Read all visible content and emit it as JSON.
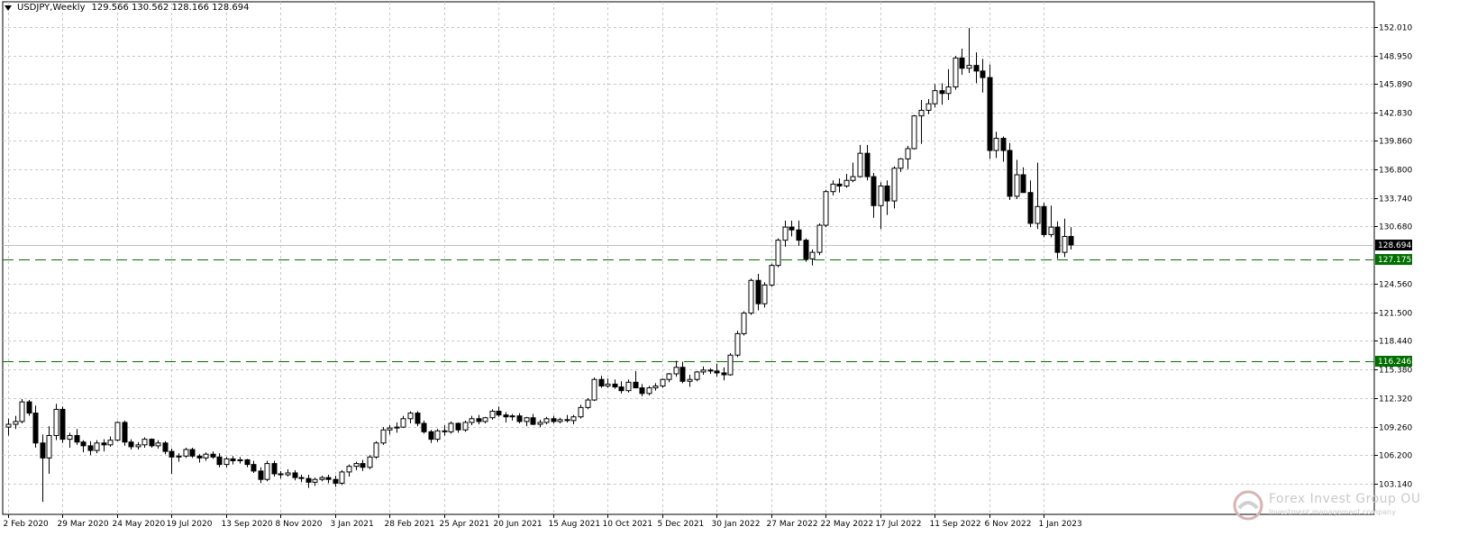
{
  "header": {
    "symbol": "USDJPY,Weekly",
    "ohlc": "129.566 130.562 128.166 128.694"
  },
  "watermark": {
    "name": "Forex Invest Group OU",
    "tagline": "Investment management company"
  },
  "chart_data": {
    "type": "candlestick",
    "title": "USDJPY,Weekly",
    "ylim": [
      103.0,
      153.5
    ],
    "y_ticks": [
      "152.010",
      "148.950",
      "145.890",
      "142.830",
      "139.860",
      "136.800",
      "133.740",
      "130.680",
      "124.560",
      "121.500",
      "118.440",
      "115.380",
      "112.320",
      "109.260",
      "106.200",
      "103.140"
    ],
    "x_ticks": [
      "2 Feb 2020",
      "29 Mar 2020",
      "24 May 2020",
      "19 Jul 2020",
      "13 Sep 2020",
      "8 Nov 2020",
      "3 Jan 2021",
      "28 Feb 2021",
      "25 Apr 2021",
      "20 Jun 2021",
      "15 Aug 2021",
      "10 Oct 2021",
      "5 Dec 2021",
      "30 Jan 2022",
      "27 Mar 2022",
      "22 May 2022",
      "17 Jul 2022",
      "11 Sep 2022",
      "6 Nov 2022",
      "1 Jan 2023"
    ],
    "current_price": "128.694",
    "levels": [
      {
        "value": 127.175,
        "label": "127.175",
        "color": "#007000",
        "style": "dashed"
      },
      {
        "value": 116.246,
        "label": "116.246",
        "color": "#007000",
        "style": "dashed"
      }
    ],
    "grid": true,
    "colors": {
      "bull_fill": "#ffffff",
      "bear_fill": "#000000",
      "outline": "#000000",
      "grid": "#c8c8c8",
      "current_line": "#c0c0c0"
    },
    "candles": [
      [
        109.2,
        110.1,
        108.3,
        109.5
      ],
      [
        109.5,
        110.4,
        109.0,
        109.8
      ],
      [
        109.8,
        112.2,
        109.6,
        111.9
      ],
      [
        111.9,
        112.1,
        110.4,
        110.7
      ],
      [
        110.7,
        111.5,
        107.0,
        107.5
      ],
      [
        107.5,
        108.4,
        101.2,
        105.9
      ],
      [
        105.9,
        109.3,
        104.2,
        108.3
      ],
      [
        108.3,
        111.7,
        107.8,
        111.1
      ],
      [
        111.1,
        111.4,
        107.5,
        107.9
      ],
      [
        107.9,
        108.6,
        107.0,
        108.3
      ],
      [
        108.3,
        109.0,
        107.3,
        107.6
      ],
      [
        107.6,
        107.8,
        106.5,
        107.2
      ],
      [
        107.2,
        107.7,
        106.2,
        106.7
      ],
      [
        106.7,
        107.8,
        106.4,
        107.5
      ],
      [
        107.5,
        107.9,
        106.6,
        107.3
      ],
      [
        107.3,
        108.2,
        107.1,
        107.8
      ],
      [
        107.8,
        109.8,
        107.7,
        109.7
      ],
      [
        109.7,
        109.9,
        107.2,
        107.6
      ],
      [
        107.6,
        107.9,
        106.8,
        107.1
      ],
      [
        107.1,
        107.6,
        106.8,
        107.3
      ],
      [
        107.3,
        108.1,
        107.0,
        107.9
      ],
      [
        107.9,
        108.0,
        107.0,
        107.2
      ],
      [
        107.2,
        107.8,
        106.9,
        107.5
      ],
      [
        107.5,
        107.7,
        106.3,
        106.6
      ],
      [
        106.6,
        106.9,
        104.2,
        106.0
      ],
      [
        106.0,
        106.4,
        105.5,
        106.1
      ],
      [
        106.1,
        107.0,
        105.9,
        106.8
      ],
      [
        106.8,
        107.0,
        105.9,
        106.1
      ],
      [
        106.1,
        106.3,
        105.4,
        105.9
      ],
      [
        105.9,
        106.5,
        105.6,
        106.3
      ],
      [
        106.3,
        106.6,
        105.8,
        106.0
      ],
      [
        106.0,
        106.4,
        104.9,
        105.2
      ],
      [
        105.2,
        106.0,
        104.9,
        105.8
      ],
      [
        105.8,
        106.1,
        105.2,
        105.6
      ],
      [
        105.6,
        106.0,
        105.3,
        105.7
      ],
      [
        105.7,
        105.8,
        104.9,
        105.2
      ],
      [
        105.2,
        105.6,
        104.3,
        104.5
      ],
      [
        104.5,
        104.9,
        103.2,
        103.6
      ],
      [
        103.6,
        105.6,
        103.4,
        105.3
      ],
      [
        105.3,
        105.6,
        103.9,
        104.2
      ],
      [
        104.2,
        104.5,
        103.7,
        104.1
      ],
      [
        104.1,
        104.7,
        103.9,
        104.3
      ],
      [
        104.3,
        104.6,
        103.5,
        103.8
      ],
      [
        103.8,
        104.1,
        103.3,
        103.7
      ],
      [
        103.7,
        104.1,
        102.7,
        103.3
      ],
      [
        103.3,
        103.8,
        102.9,
        103.6
      ],
      [
        103.6,
        104.0,
        103.4,
        103.8
      ],
      [
        103.8,
        104.1,
        103.2,
        103.6
      ],
      [
        103.6,
        104.0,
        102.8,
        103.2
      ],
      [
        103.2,
        104.6,
        103.0,
        104.4
      ],
      [
        104.4,
        105.2,
        103.9,
        105.0
      ],
      [
        105.0,
        105.5,
        104.6,
        105.3
      ],
      [
        105.3,
        105.7,
        104.5,
        104.9
      ],
      [
        104.9,
        106.2,
        104.7,
        106.0
      ],
      [
        106.0,
        107.7,
        105.8,
        107.5
      ],
      [
        107.5,
        109.2,
        107.3,
        108.9
      ],
      [
        108.9,
        109.4,
        108.4,
        109.1
      ],
      [
        109.1,
        109.7,
        108.6,
        109.2
      ],
      [
        109.2,
        110.4,
        109.1,
        110.1
      ],
      [
        110.1,
        110.9,
        109.6,
        110.7
      ],
      [
        110.7,
        110.9,
        109.3,
        109.6
      ],
      [
        109.6,
        109.9,
        108.5,
        108.7
      ],
      [
        108.7,
        108.9,
        107.5,
        107.9
      ],
      [
        107.9,
        109.0,
        107.6,
        108.8
      ],
      [
        108.8,
        109.4,
        108.3,
        108.7
      ],
      [
        108.7,
        109.8,
        108.5,
        109.6
      ],
      [
        109.6,
        109.7,
        108.6,
        108.9
      ],
      [
        108.9,
        109.9,
        108.7,
        109.7
      ],
      [
        109.7,
        110.4,
        109.4,
        110.1
      ],
      [
        110.1,
        110.5,
        109.5,
        109.8
      ],
      [
        109.8,
        110.3,
        109.6,
        110.2
      ],
      [
        110.2,
        111.1,
        110.0,
        110.9
      ],
      [
        110.9,
        111.4,
        110.3,
        110.5
      ],
      [
        110.5,
        110.8,
        109.7,
        110.3
      ],
      [
        110.3,
        110.6,
        109.9,
        110.4
      ],
      [
        110.4,
        110.7,
        109.6,
        109.8
      ],
      [
        109.8,
        110.3,
        109.3,
        110.2
      ],
      [
        110.2,
        110.6,
        109.4,
        109.5
      ],
      [
        109.5,
        110.0,
        109.2,
        109.7
      ],
      [
        109.7,
        110.3,
        109.5,
        110.1
      ],
      [
        110.1,
        110.4,
        109.6,
        109.8
      ],
      [
        109.8,
        110.2,
        109.6,
        110.0
      ],
      [
        110.0,
        110.5,
        109.7,
        109.9
      ],
      [
        109.9,
        110.5,
        109.5,
        110.3
      ],
      [
        110.3,
        111.6,
        110.1,
        111.3
      ],
      [
        111.3,
        112.3,
        111.1,
        112.1
      ],
      [
        112.1,
        114.5,
        112.0,
        114.3
      ],
      [
        114.3,
        114.7,
        113.4,
        113.6
      ],
      [
        113.6,
        114.4,
        113.4,
        113.8
      ],
      [
        113.8,
        114.3,
        113.3,
        113.5
      ],
      [
        113.5,
        114.1,
        112.8,
        113.1
      ],
      [
        113.1,
        114.3,
        112.9,
        114.0
      ],
      [
        114.0,
        115.2,
        113.6,
        113.4
      ],
      [
        113.4,
        113.8,
        112.5,
        112.8
      ],
      [
        112.8,
        113.6,
        112.6,
        113.4
      ],
      [
        113.4,
        113.9,
        113.1,
        113.6
      ],
      [
        113.6,
        114.4,
        113.4,
        114.3
      ],
      [
        114.3,
        115.0,
        114.0,
        114.9
      ],
      [
        114.9,
        116.3,
        114.6,
        115.6
      ],
      [
        115.6,
        116.2,
        113.9,
        114.1
      ],
      [
        114.1,
        114.8,
        113.5,
        114.3
      ],
      [
        114.3,
        115.2,
        114.1,
        115.1
      ],
      [
        115.1,
        115.7,
        114.8,
        115.3
      ],
      [
        115.3,
        115.5,
        114.9,
        115.2
      ],
      [
        115.2,
        116.0,
        114.6,
        115.0
      ],
      [
        115.0,
        115.6,
        114.2,
        114.8
      ],
      [
        114.8,
        117.1,
        114.7,
        116.9
      ],
      [
        116.9,
        119.5,
        116.7,
        119.2
      ],
      [
        119.2,
        121.6,
        119.0,
        121.4
      ],
      [
        121.4,
        125.1,
        121.2,
        124.9
      ],
      [
        124.9,
        125.6,
        121.7,
        122.4
      ],
      [
        122.4,
        124.7,
        122.0,
        124.4
      ],
      [
        124.4,
        126.7,
        124.2,
        126.5
      ],
      [
        126.5,
        129.4,
        126.3,
        129.2
      ],
      [
        129.2,
        131.3,
        128.5,
        130.6
      ],
      [
        130.6,
        131.3,
        129.6,
        130.3
      ],
      [
        130.3,
        131.3,
        128.6,
        129.2
      ],
      [
        129.2,
        129.4,
        126.9,
        127.2
      ],
      [
        127.2,
        128.2,
        126.5,
        127.9
      ],
      [
        127.9,
        131.0,
        127.6,
        130.8
      ],
      [
        130.8,
        134.6,
        130.6,
        134.4
      ],
      [
        134.4,
        135.6,
        134.0,
        135.2
      ],
      [
        135.2,
        135.8,
        134.3,
        135.0
      ],
      [
        135.0,
        136.3,
        134.8,
        135.6
      ],
      [
        135.6,
        137.5,
        135.4,
        136.0
      ],
      [
        136.0,
        139.4,
        135.9,
        138.5
      ],
      [
        138.5,
        139.4,
        135.6,
        136.0
      ],
      [
        136.0,
        136.4,
        131.6,
        132.9
      ],
      [
        132.9,
        135.4,
        130.4,
        135.0
      ],
      [
        135.0,
        135.6,
        131.9,
        133.4
      ],
      [
        133.4,
        137.1,
        132.6,
        136.9
      ],
      [
        136.9,
        138.0,
        136.5,
        137.9
      ],
      [
        137.9,
        139.3,
        136.8,
        139.0
      ],
      [
        139.0,
        142.6,
        138.9,
        142.5
      ],
      [
        142.5,
        144.2,
        139.5,
        143.1
      ],
      [
        143.1,
        144.3,
        142.7,
        143.8
      ],
      [
        143.8,
        145.9,
        143.4,
        145.2
      ],
      [
        145.2,
        146.0,
        143.7,
        144.9
      ],
      [
        144.9,
        147.5,
        144.2,
        145.6
      ],
      [
        145.6,
        148.9,
        145.3,
        148.7
      ],
      [
        148.7,
        149.7,
        146.9,
        147.6
      ],
      [
        147.6,
        151.9,
        147.1,
        147.9
      ],
      [
        147.9,
        149.3,
        146.0,
        147.3
      ],
      [
        147.3,
        148.6,
        145.0,
        146.6
      ],
      [
        146.6,
        148.0,
        137.9,
        138.8
      ],
      [
        138.8,
        140.8,
        138.0,
        140.1
      ],
      [
        140.1,
        140.3,
        137.6,
        138.8
      ],
      [
        138.8,
        139.6,
        133.5,
        133.9
      ],
      [
        133.9,
        137.8,
        133.6,
        136.2
      ],
      [
        136.2,
        137.0,
        134.6,
        134.3
      ],
      [
        134.3,
        135.6,
        130.6,
        131.0
      ],
      [
        131.0,
        137.5,
        130.4,
        132.8
      ],
      [
        132.8,
        133.2,
        129.5,
        129.8
      ],
      [
        129.8,
        132.9,
        129.5,
        130.6
      ],
      [
        130.6,
        131.2,
        127.2,
        127.9
      ],
      [
        127.9,
        131.5,
        127.4,
        129.6
      ],
      [
        129.6,
        130.6,
        128.2,
        128.7
      ]
    ]
  }
}
